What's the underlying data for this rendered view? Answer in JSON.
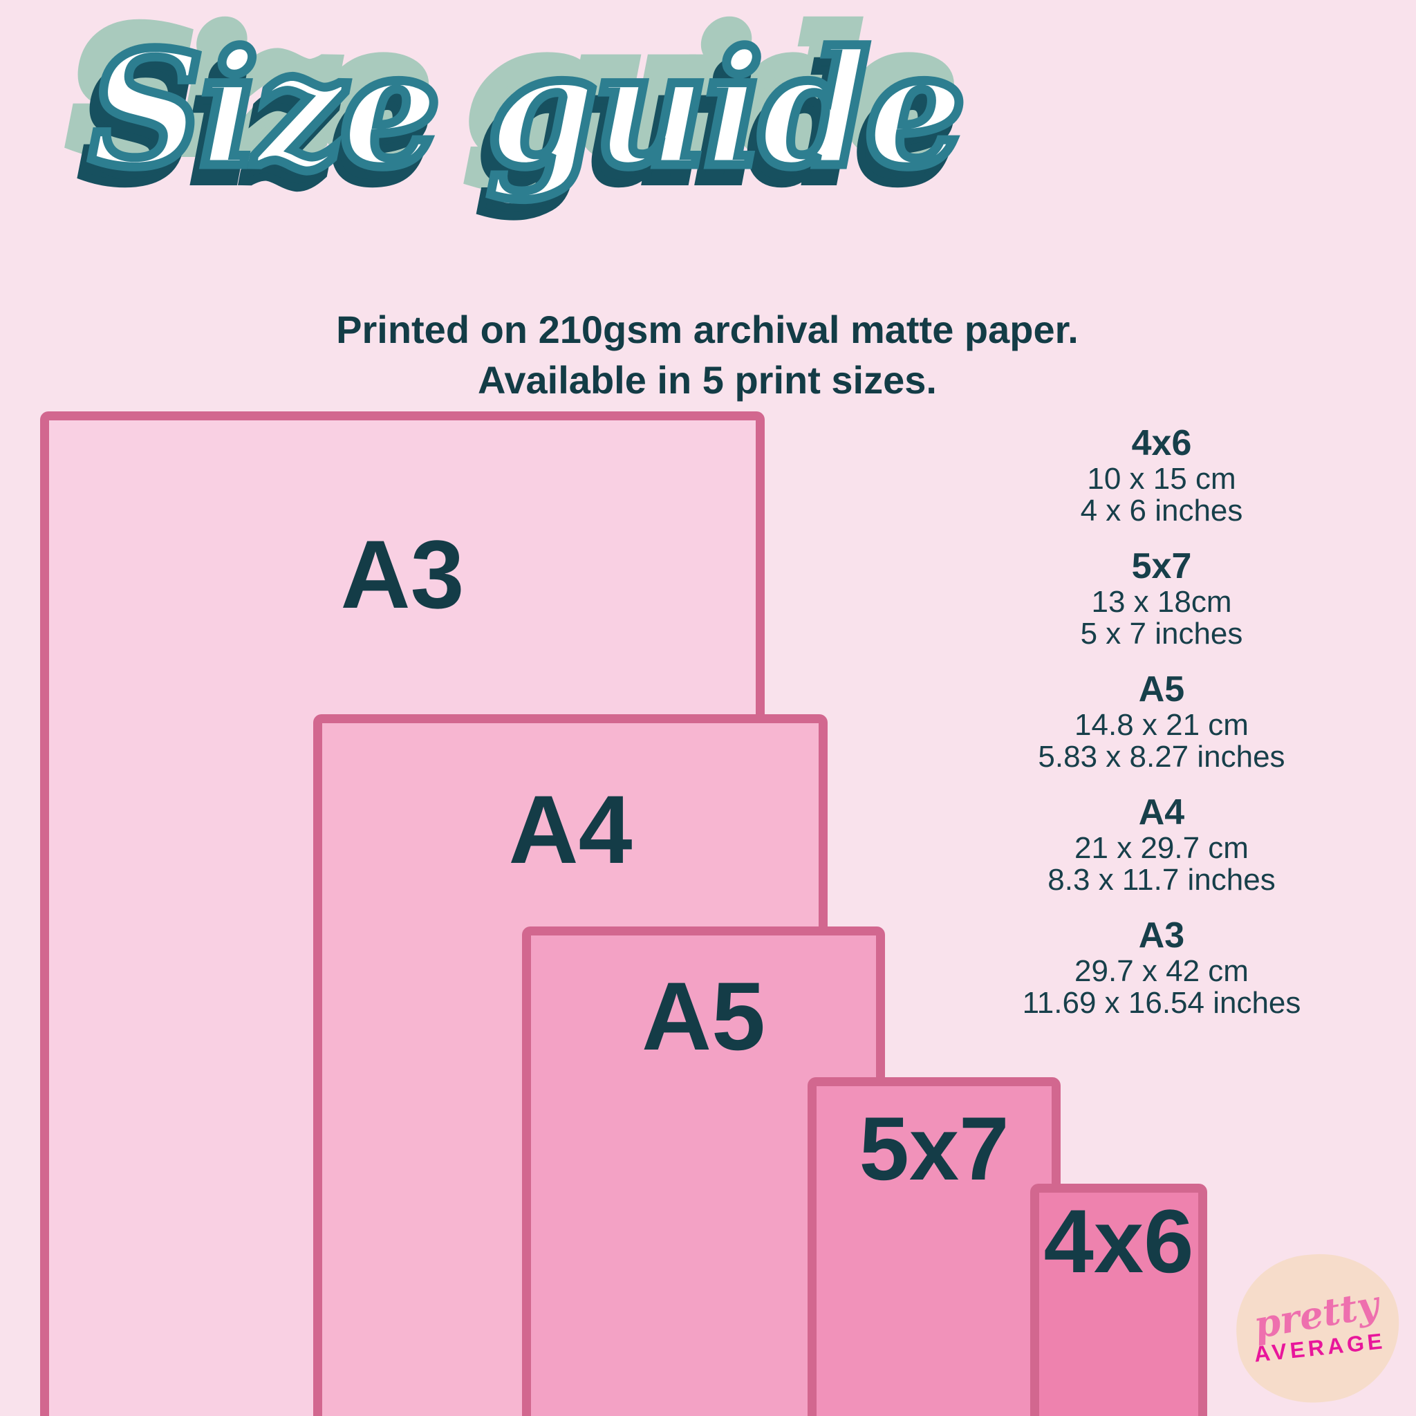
{
  "title": {
    "text": "Size guide"
  },
  "subtitle": {
    "line1": "Printed on 210gsm archival matte paper.",
    "line2": "Available in 5 print sizes."
  },
  "papers": [
    {
      "id": "a3",
      "label": "A3",
      "fill": "#f9d0e3"
    },
    {
      "id": "a4",
      "label": "A4",
      "fill": "#f7b6d1"
    },
    {
      "id": "a5",
      "label": "A5",
      "fill": "#f3a2c5"
    },
    {
      "id": "5x7",
      "label": "5x7",
      "fill": "#f192ba"
    },
    {
      "id": "4x6",
      "label": "4x6",
      "fill": "#ee82ae"
    }
  ],
  "size_list": [
    {
      "name": "4x6",
      "cm": "10 x 15 cm",
      "inches": "4 x 6 inches"
    },
    {
      "name": "5x7",
      "cm": "13 x 18cm",
      "inches": "5 x 7 inches"
    },
    {
      "name": "A5",
      "cm": "14.8 x 21 cm",
      "inches": "5.83 x 8.27 inches"
    },
    {
      "name": "A4",
      "cm": "21 x 29.7 cm",
      "inches": "8.3 x 11.7 inches"
    },
    {
      "name": "A3",
      "cm": "29.7 x 42 cm",
      "inches": "11.69 x 16.54 inches"
    }
  ],
  "logo": {
    "line1": "pretty",
    "line2": "AVERAGE"
  },
  "colors": {
    "background": "#f9e2ec",
    "paper_border": "#d2678f",
    "label_text": "#143c47",
    "title_main": "#2d7e90",
    "title_inline": "#ffffff",
    "title_shadow_dark": "#17505f",
    "title_shadow_sage": "#a9cabd",
    "logo_blob": "#f6dcca",
    "logo_pretty_pink": "#ee6fae",
    "logo_average_magenta": "#e8169b"
  }
}
